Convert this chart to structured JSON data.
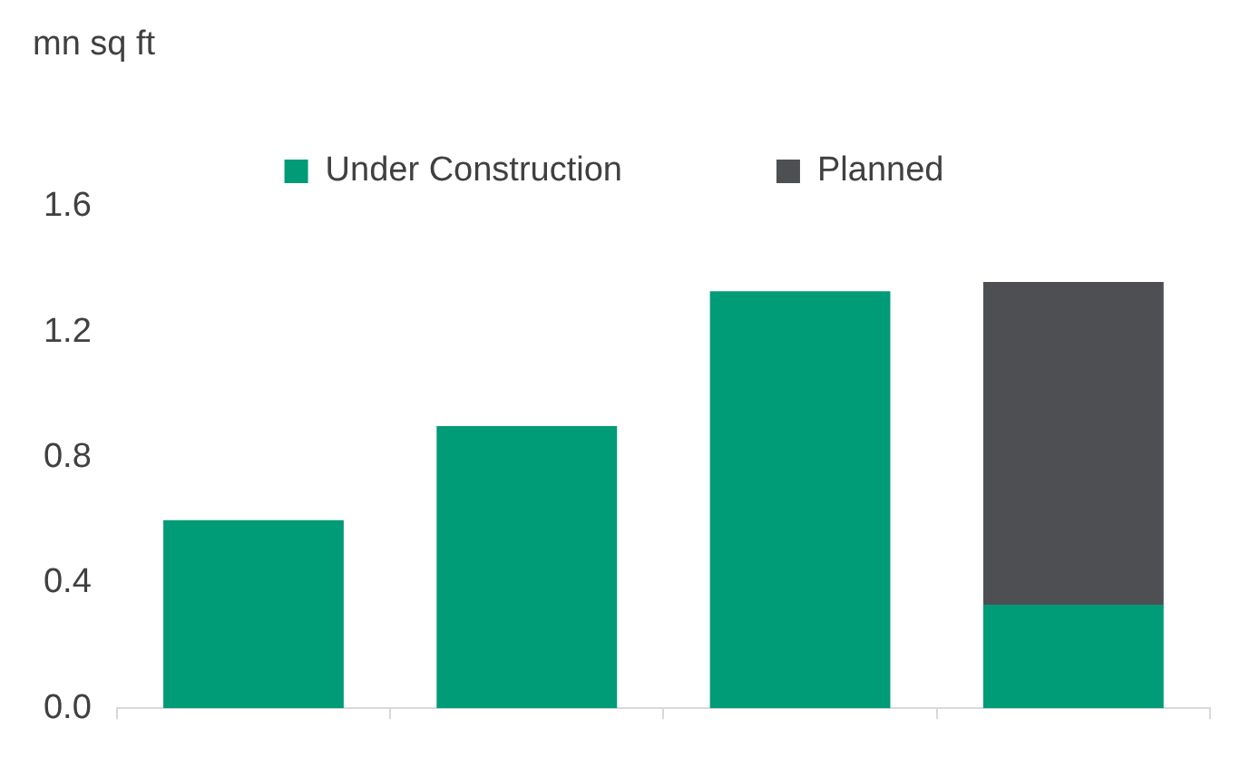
{
  "chart_data": {
    "type": "bar",
    "ylabel": "mn sq ft",
    "categories": [
      null,
      null,
      null,
      null
    ],
    "stacked": true,
    "legend": "top",
    "grid": false,
    "ylim": [
      0,
      1.6
    ],
    "yticks": [
      {
        "value": 0,
        "label": "0.0"
      },
      {
        "value": 0.4,
        "label": "0.4"
      },
      {
        "value": 0.8,
        "label": "0.8"
      },
      {
        "value": 1.2,
        "label": "1.2"
      },
      {
        "value": 1.6,
        "label": "1.6"
      }
    ],
    "series": [
      {
        "name": "Under Construction",
        "color": "#009b77",
        "values": [
          0.6,
          0.9,
          1.33,
          0.33
        ]
      },
      {
        "name": "Planned",
        "color": "#4d4f53",
        "values": [
          null,
          null,
          null,
          1.03
        ]
      }
    ]
  }
}
